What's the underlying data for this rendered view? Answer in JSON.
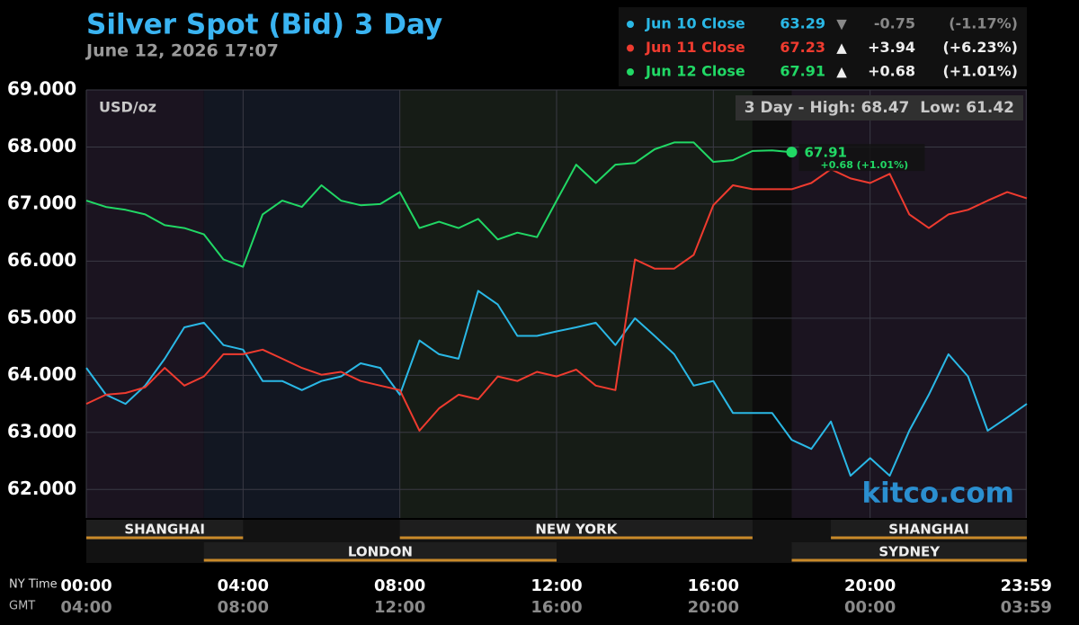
{
  "chart_data": {
    "type": "line",
    "title": "Silver Spot (Bid) 3 Day",
    "subtitle": "June 12, 2026 17:07",
    "unit_label": "USD/oz",
    "range_label": "3 Day - High:",
    "high": 68.47,
    "low_label": "Low:",
    "low": 61.42,
    "watermark": "kitco.com",
    "x_axis_label": "NY Time",
    "x2_axis_label": "GMT",
    "xlim": [
      0,
      24
    ],
    "ylim": [
      61.5,
      69
    ],
    "xticks": [
      {
        "value": 0,
        "label": "00:00"
      },
      {
        "value": 4,
        "label": "04:00"
      },
      {
        "value": 8,
        "label": "08:00"
      },
      {
        "value": 12,
        "label": "12:00"
      },
      {
        "value": 16,
        "label": "16:00"
      },
      {
        "value": 20,
        "label": "20:00"
      },
      {
        "value": 23.983,
        "label": "23:59"
      }
    ],
    "x2ticks": [
      {
        "value": 0,
        "label": "04:00"
      },
      {
        "value": 4,
        "label": "08:00"
      },
      {
        "value": 8,
        "label": "12:00"
      },
      {
        "value": 12,
        "label": "16:00"
      },
      {
        "value": 16,
        "label": "20:00"
      },
      {
        "value": 20,
        "label": "00:00"
      },
      {
        "value": 23.983,
        "label": "03:59"
      }
    ],
    "yticks": [
      {
        "value": 69,
        "label": "69.000"
      },
      {
        "value": 68,
        "label": "68.000"
      },
      {
        "value": 67,
        "label": "67.000"
      },
      {
        "value": 66,
        "label": "66.000"
      },
      {
        "value": 65,
        "label": "65.000"
      },
      {
        "value": 64,
        "label": "64.000"
      },
      {
        "value": 63,
        "label": "63.000"
      },
      {
        "value": 62,
        "label": "62.000"
      }
    ],
    "grid": true,
    "shading": [
      {
        "start": 0,
        "end": 3,
        "color": "#1b1420"
      },
      {
        "start": 3,
        "end": 8,
        "color": "#121722"
      },
      {
        "start": 8,
        "end": 17,
        "color": "#161c16"
      },
      {
        "start": 17,
        "end": 18,
        "color": "#0c0c0c"
      },
      {
        "start": 18,
        "end": 24,
        "color": "#1b1420"
      }
    ],
    "sessions": [
      {
        "name": "SHANGHAI",
        "start": 0,
        "end": 4,
        "row": 1
      },
      {
        "name": "NEW YORK",
        "start": 8,
        "end": 17,
        "row": 1
      },
      {
        "name": "SHANGHAI",
        "start": 19,
        "end": 24,
        "row": 1
      },
      {
        "name": "LONDON",
        "start": 3,
        "end": 12,
        "row": 2
      },
      {
        "name": "SYDNEY",
        "start": 18,
        "end": 24,
        "row": 2
      }
    ],
    "x": [
      0,
      0.5,
      1,
      1.5,
      2,
      2.5,
      3,
      3.5,
      4,
      4.5,
      5,
      5.5,
      6,
      6.5,
      7,
      7.5,
      8,
      8.5,
      9,
      9.5,
      10,
      10.5,
      11,
      11.5,
      12,
      12.5,
      13,
      13.5,
      14,
      14.5,
      15,
      15.5,
      16,
      16.5,
      17,
      17.5,
      18,
      18.5,
      19,
      19.5,
      20,
      20.5,
      21,
      21.5,
      22,
      22.5,
      23,
      23.5,
      24
    ],
    "series": [
      {
        "name": "Jun 10 Close",
        "color": "#2ab8e6",
        "close": 63.29,
        "arrow": "▼",
        "change": -0.75,
        "pct": "(-1.17%)",
        "values": [
          64.13,
          63.66,
          63.5,
          63.82,
          64.29,
          64.84,
          64.92,
          64.53,
          64.45,
          63.9,
          63.9,
          63.74,
          63.9,
          63.98,
          64.21,
          64.13,
          63.66,
          64.61,
          64.37,
          64.29,
          65.48,
          65.24,
          64.69,
          64.69,
          64.77,
          64.84,
          64.92,
          64.53,
          65.0,
          64.69,
          64.37,
          63.82,
          63.9,
          63.34,
          63.34,
          63.34,
          62.87,
          62.71,
          63.19,
          62.24,
          62.55,
          62.24,
          63.03,
          63.66,
          64.37,
          63.98,
          63.03,
          63.26,
          63.5
        ]
      },
      {
        "name": "Jun 11 Close",
        "color": "#ef3b2f",
        "close": 67.23,
        "arrow": "▲",
        "change": {
          "value": 3.94,
          "label": "+3.94"
        },
        "pct": "(+6.23%)",
        "values": [
          63.5,
          63.66,
          63.69,
          63.79,
          64.13,
          63.82,
          63.98,
          64.37,
          64.37,
          64.45,
          64.29,
          64.13,
          64.01,
          64.06,
          63.9,
          63.82,
          63.74,
          63.03,
          63.42,
          63.66,
          63.58,
          63.98,
          63.9,
          64.06,
          63.98,
          64.1,
          63.82,
          63.74,
          66.03,
          65.87,
          65.87,
          66.11,
          66.98,
          67.33,
          67.26,
          67.26,
          67.26,
          67.37,
          67.61,
          67.45,
          67.37,
          67.53,
          66.82,
          66.58,
          66.82,
          66.9,
          67.06,
          67.21,
          67.1
        ]
      },
      {
        "name": "Jun 12 Close",
        "color": "#21d865",
        "close": 67.91,
        "arrow": "▲",
        "change": {
          "value": 0.68,
          "label": "+0.68"
        },
        "pct": "(+1.01%)",
        "end_note": "+0.68 (+1.01%)",
        "values": [
          67.06,
          66.95,
          66.9,
          66.82,
          66.63,
          66.58,
          66.47,
          66.03,
          65.9,
          66.82,
          67.06,
          66.95,
          67.33,
          67.06,
          66.98,
          67.0,
          67.21,
          66.58,
          66.69,
          66.58,
          66.74,
          66.38,
          66.5,
          66.42,
          67.06,
          67.69,
          67.37,
          67.69,
          67.72,
          67.96,
          68.08,
          68.08,
          67.74,
          67.77,
          67.93,
          67.94,
          67.91,
          null,
          null,
          null,
          null,
          null,
          null,
          null,
          null,
          null,
          null,
          null,
          null
        ]
      }
    ]
  }
}
